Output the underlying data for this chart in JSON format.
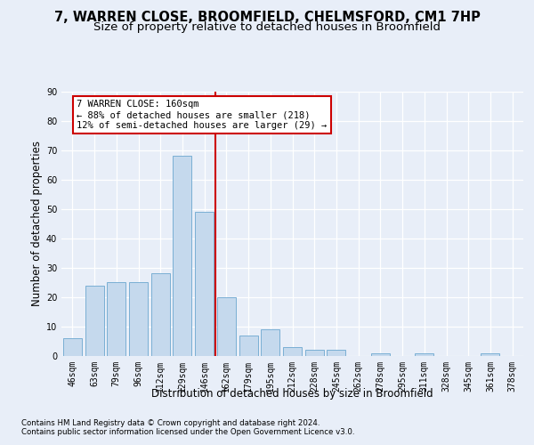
{
  "title1": "7, WARREN CLOSE, BROOMFIELD, CHELMSFORD, CM1 7HP",
  "title2": "Size of property relative to detached houses in Broomfield",
  "xlabel": "Distribution of detached houses by size in Broomfield",
  "ylabel": "Number of detached properties",
  "categories": [
    "46sqm",
    "63sqm",
    "79sqm",
    "96sqm",
    "112sqm",
    "129sqm",
    "146sqm",
    "162sqm",
    "179sqm",
    "195sqm",
    "212sqm",
    "228sqm",
    "245sqm",
    "262sqm",
    "278sqm",
    "295sqm",
    "311sqm",
    "328sqm",
    "345sqm",
    "361sqm",
    "378sqm"
  ],
  "values": [
    6,
    24,
    25,
    25,
    28,
    68,
    49,
    20,
    7,
    9,
    3,
    2,
    2,
    0,
    1,
    0,
    1,
    0,
    0,
    1,
    0
  ],
  "bar_color": "#c5d9ed",
  "bar_edge_color": "#7aafd4",
  "vline_index": 7,
  "vline_color": "#cc0000",
  "annotation_line1": "7 WARREN CLOSE: 160sqm",
  "annotation_line2": "← 88% of detached houses are smaller (218)",
  "annotation_line3": "12% of semi-detached houses are larger (29) →",
  "annotation_box_color": "#ffffff",
  "annotation_box_edge": "#cc0000",
  "ylim": [
    0,
    90
  ],
  "yticks": [
    0,
    10,
    20,
    30,
    40,
    50,
    60,
    70,
    80,
    90
  ],
  "bg_color": "#e8eef8",
  "plot_bg_color": "#e8eef8",
  "footer1": "Contains HM Land Registry data © Crown copyright and database right 2024.",
  "footer2": "Contains public sector information licensed under the Open Government Licence v3.0.",
  "title1_fontsize": 10.5,
  "title2_fontsize": 9.5,
  "tick_fontsize": 7,
  "ylabel_fontsize": 8.5,
  "xlabel_fontsize": 8.5,
  "annotation_fontsize": 7.5,
  "footer_fontsize": 6.2
}
